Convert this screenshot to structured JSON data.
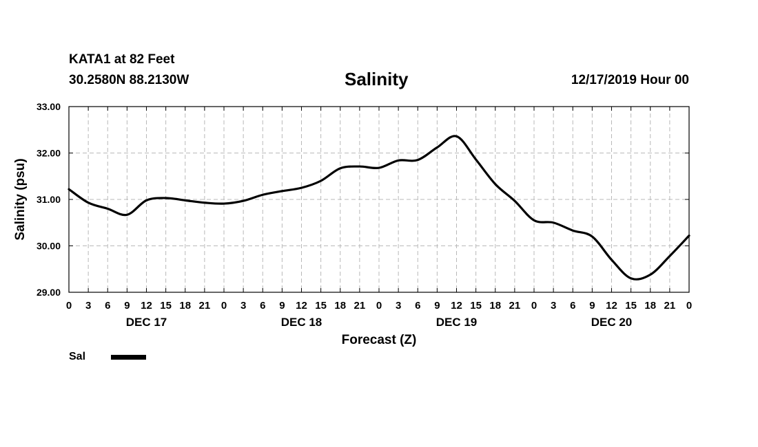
{
  "header": {
    "station": "KATA1 at 82 Feet",
    "coordinates": "30.2580N 88.2130W",
    "title": "Salinity",
    "datetime": "12/17/2019 Hour 00"
  },
  "chart_data": {
    "type": "line",
    "title": "Salinity",
    "xlabel": "Forecast (Z)",
    "ylabel": "Salinity (psu)",
    "ylim": [
      29,
      33
    ],
    "xlim": [
      0,
      96
    ],
    "x_unit": "hours from 12/17/2019 00Z",
    "grid": true,
    "yticks": [
      "29.00",
      "30.00",
      "31.00",
      "32.00",
      "33.00"
    ],
    "xtick_labels": [
      "0",
      "3",
      "6",
      "9",
      "12",
      "15",
      "18",
      "21",
      "0",
      "3",
      "6",
      "9",
      "12",
      "15",
      "18",
      "21",
      "0",
      "3",
      "6",
      "9",
      "12",
      "15",
      "18",
      "21",
      "0",
      "3",
      "6",
      "9",
      "12",
      "15",
      "18",
      "21",
      "0"
    ],
    "day_labels": [
      {
        "label": "DEC 17",
        "hour": 12
      },
      {
        "label": "DEC 18",
        "hour": 36
      },
      {
        "label": "DEC 19",
        "hour": 60
      },
      {
        "label": "DEC 20",
        "hour": 84
      }
    ],
    "legend": [
      {
        "name": "Sal",
        "color": "#000000"
      }
    ],
    "series": [
      {
        "name": "Sal",
        "x": [
          0,
          3,
          6,
          9,
          12,
          15,
          18,
          21,
          24,
          27,
          30,
          33,
          36,
          39,
          42,
          45,
          48,
          51,
          54,
          57,
          60,
          63,
          66,
          69,
          72,
          75,
          78,
          81,
          84,
          87,
          90,
          93,
          96
        ],
        "values": [
          31.22,
          30.93,
          30.8,
          30.67,
          30.98,
          31.03,
          30.98,
          30.93,
          30.91,
          30.97,
          31.1,
          31.18,
          31.25,
          31.4,
          31.67,
          31.71,
          31.68,
          31.84,
          31.85,
          32.12,
          32.36,
          31.86,
          31.33,
          30.97,
          30.55,
          30.5,
          30.33,
          30.2,
          29.7,
          29.3,
          29.38,
          29.78,
          30.22
        ]
      }
    ]
  }
}
